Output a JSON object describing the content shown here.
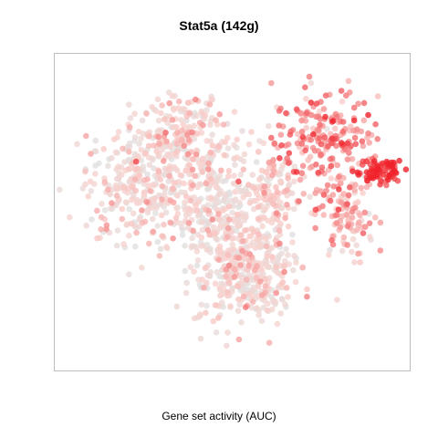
{
  "chart_data": {
    "type": "scatter",
    "title": "Stat5a (142g)",
    "xlabel": "Gene set activity (AUC)",
    "ylabel": "",
    "axes_visible": false,
    "grid": false,
    "color_scale": {
      "low": "#e0e0e0",
      "mid": "#f9d0cc",
      "high": "#f0222b"
    },
    "clusters": [
      {
        "name": "",
        "cx": 0.78,
        "cy": 0.74,
        "rx": 0.14,
        "ry": 0.16,
        "n": 220,
        "level": 0.62
      },
      {
        "name": "",
        "cx": 0.94,
        "cy": 0.64,
        "rx": 0.07,
        "ry": 0.04,
        "n": 90,
        "level": 0.92
      },
      {
        "name": "",
        "cx": 0.84,
        "cy": 0.49,
        "rx": 0.08,
        "ry": 0.13,
        "n": 110,
        "level": 0.42
      },
      {
        "name": "",
        "cx": 0.23,
        "cy": 0.6,
        "rx": 0.16,
        "ry": 0.18,
        "n": 340,
        "level": 0.22
      },
      {
        "name": "",
        "cx": 0.45,
        "cy": 0.52,
        "rx": 0.12,
        "ry": 0.2,
        "n": 280,
        "level": 0.18
      },
      {
        "name": "",
        "cx": 0.53,
        "cy": 0.27,
        "rx": 0.14,
        "ry": 0.15,
        "n": 240,
        "level": 0.22
      },
      {
        "name": "",
        "cx": 0.35,
        "cy": 0.78,
        "rx": 0.12,
        "ry": 0.1,
        "n": 150,
        "level": 0.3
      },
      {
        "name": "",
        "cx": 0.62,
        "cy": 0.56,
        "rx": 0.07,
        "ry": 0.15,
        "n": 120,
        "level": 0.25
      },
      {
        "name": "",
        "cx": 0.58,
        "cy": 0.35,
        "rx": 0.11,
        "ry": 0.12,
        "n": 130,
        "level": 0.3
      }
    ]
  }
}
